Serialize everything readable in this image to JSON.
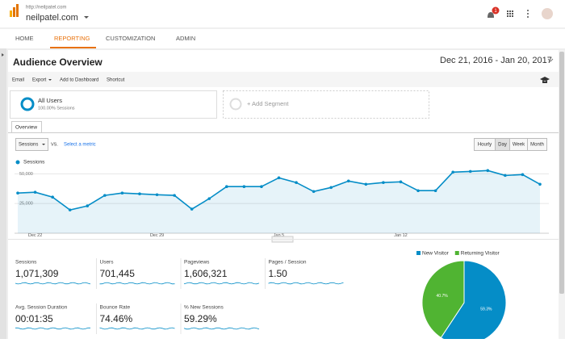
{
  "header": {
    "url": "http://neilpatel.com",
    "site": "neilpatel.com",
    "notifications": "1"
  },
  "nav": [
    "HOME",
    "REPORTING",
    "CUSTOMIZATION",
    "ADMIN"
  ],
  "page": {
    "title": "Audience Overview",
    "date_range": "Dec 21, 2016 - Jan 20, 2017"
  },
  "toolbar": [
    "Email",
    "Export",
    "Add to Dashboard",
    "Shortcut"
  ],
  "segments": [
    {
      "name": "All Users",
      "detail": "100.00% Sessions"
    },
    {
      "name": "+ Add Segment"
    }
  ],
  "tab": "Overview",
  "controls": {
    "metric": "Sessions",
    "vs": "VS.",
    "select_metric": "Select a metric",
    "granularity": [
      "Hourly",
      "Day",
      "Week",
      "Month"
    ]
  },
  "metrics": [
    {
      "label": "Sessions",
      "value": "1,071,309"
    },
    {
      "label": "Users",
      "value": "701,445"
    },
    {
      "label": "Pageviews",
      "value": "1,606,321"
    },
    {
      "label": "Pages / Session",
      "value": "1.50"
    },
    {
      "label": "Avg. Session Duration",
      "value": "00:01:35"
    },
    {
      "label": "Bounce Rate",
      "value": "74.46%"
    },
    {
      "label": "% New Sessions",
      "value": "59.29%"
    }
  ],
  "chart_data": [
    {
      "type": "area",
      "categories": [
        null,
        "Dec 22",
        null,
        null,
        null,
        null,
        null,
        null,
        "Dec 29",
        null,
        null,
        null,
        null,
        null,
        null,
        "Jan 5",
        null,
        null,
        null,
        null,
        null,
        null,
        "Jan 12",
        null,
        null,
        null,
        null,
        null,
        null,
        null,
        null
      ],
      "series": [
        {
          "name": "Sessions",
          "color": "#058dc7",
          "values": [
            33800,
            34500,
            30400,
            19600,
            23000,
            31800,
            33800,
            33100,
            32400,
            31800,
            20300,
            29100,
            39200,
            39200,
            39200,
            46600,
            42600,
            35100,
            38500,
            43900,
            41200,
            42600,
            43200,
            35800,
            35800,
            51400,
            52000,
            52700,
            48600,
            49300,
            41200
          ]
        }
      ],
      "ylim": [
        0,
        57000
      ],
      "yticks": [
        {
          "value": 25000,
          "label": "25,000"
        },
        {
          "value": 50000,
          "label": "50,000"
        }
      ],
      "grid": true
    },
    {
      "type": "pie",
      "categories": [
        "New Visitor",
        "Returning Visitor"
      ],
      "values": [
        59.3,
        40.7
      ],
      "value_labels": [
        "59.3%",
        "40.7%"
      ],
      "colors": [
        "#058dc7",
        "#50b432"
      ]
    }
  ]
}
